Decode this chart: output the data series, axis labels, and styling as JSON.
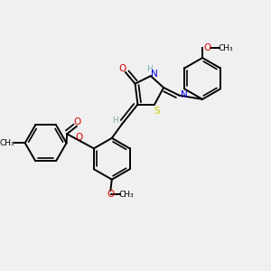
{
  "background_color": "#f0f0f0",
  "figsize": [
    3.0,
    3.0
  ],
  "dpi": 100,
  "atom_colors": {
    "C": "#000000",
    "H": "#7ab0b0",
    "N": "#0000dd",
    "O": "#dd0000",
    "S": "#cccc00"
  },
  "bond_color": "#000000",
  "bond_width": 1.4,
  "font_size": 7.5,
  "font_size_h": 6.5,
  "xlim": [
    0,
    10
  ],
  "ylim": [
    0,
    10
  ]
}
